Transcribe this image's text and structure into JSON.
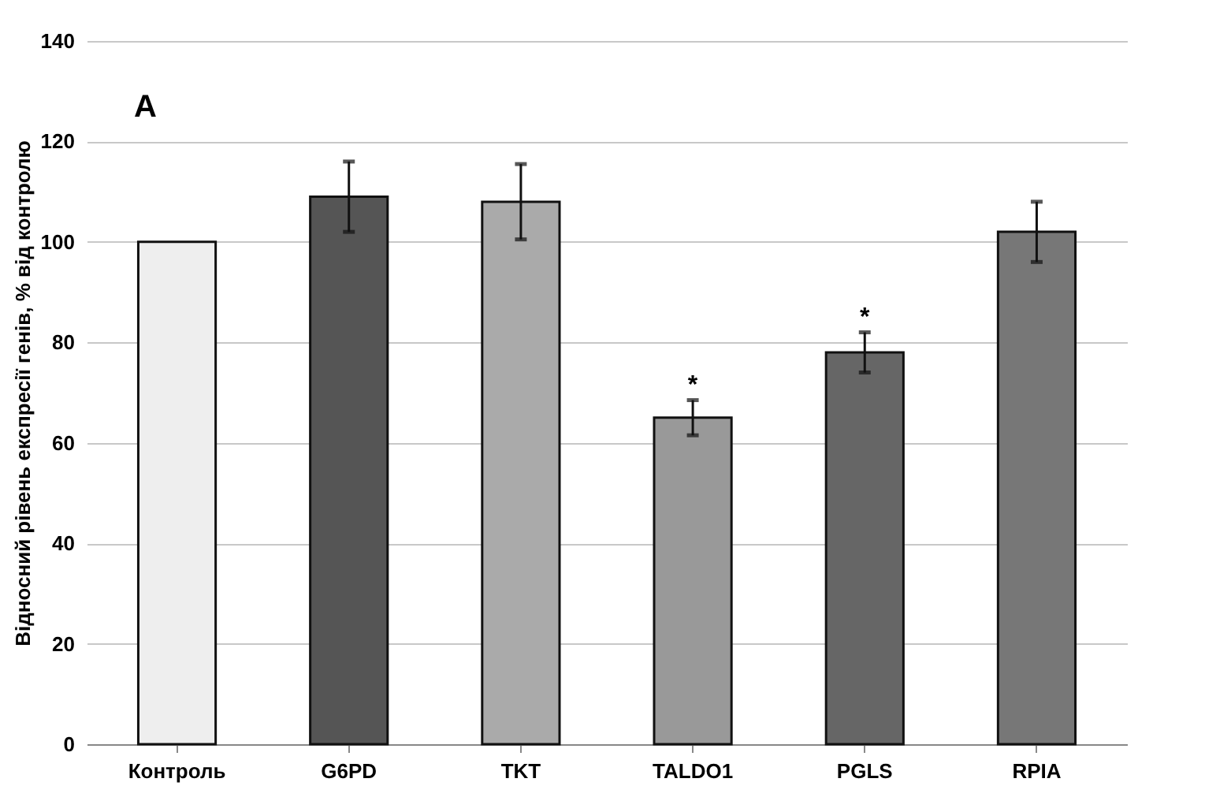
{
  "chart_data": {
    "type": "bar",
    "ylabel": "Відносний рівень експресії генів, % від контролю",
    "categories": [
      "Контроль",
      "G6PD",
      "TKT",
      "TALDO1",
      "PGLS",
      "RPIA"
    ],
    "values": [
      100,
      109,
      108,
      65,
      78,
      102
    ],
    "errors": [
      null,
      7,
      7.5,
      3.5,
      4,
      6
    ],
    "colors": [
      "#eeeeee",
      "#555555",
      "#aaaaaa",
      "#999999",
      "#666666",
      "#777777"
    ],
    "ylim": [
      0,
      140
    ],
    "yticks": [
      0,
      20,
      40,
      60,
      80,
      100,
      120,
      140
    ],
    "grid": "y",
    "annotations": [
      "A",
      {
        "text": "*",
        "x": "TALDO1",
        "y": 68.5
      },
      {
        "text": "*",
        "x": "PGLS",
        "y": 82
      }
    ]
  }
}
